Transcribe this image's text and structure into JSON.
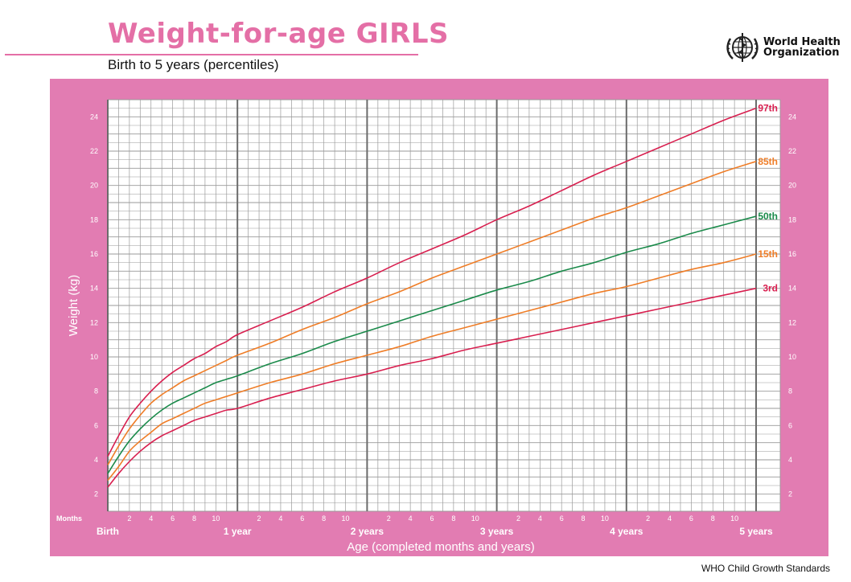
{
  "header": {
    "title": "Weight-for-age GIRLS",
    "subtitle": "Birth to 5 years (percentiles)",
    "org_line1": "World Health",
    "org_line2": "Organization"
  },
  "footer": {
    "text": "WHO Child Growth Standards"
  },
  "colors": {
    "frame": "#e27cb2",
    "grid": "#9a9a9a",
    "grid_major": "#6b6b6b",
    "p3": "#d81f4f",
    "p15": "#ef7d27",
    "p50": "#1a8a4a",
    "p85": "#ef7d27",
    "p97": "#d81f4f"
  },
  "chart_data": {
    "type": "line",
    "title": "Weight-for-age GIRLS",
    "subtitle": "Birth to 5 years (percentiles)",
    "xlabel": "Age (completed months and years)",
    "ylabel": "Weight (kg)",
    "x_unit": "months",
    "xlim": [
      0,
      60
    ],
    "ylim": [
      1,
      25
    ],
    "grid": true,
    "months_label": "Months",
    "x_minor_ticks": [
      2,
      4,
      6,
      8,
      10,
      14,
      16,
      18,
      20,
      22,
      26,
      28,
      30,
      32,
      34,
      38,
      40,
      42,
      44,
      46,
      50,
      52,
      54,
      56,
      58
    ],
    "x_minor_tick_labels": [
      "2",
      "4",
      "6",
      "8",
      "10",
      "2",
      "4",
      "6",
      "8",
      "10",
      "2",
      "4",
      "6",
      "8",
      "10",
      "2",
      "4",
      "6",
      "8",
      "10",
      "2",
      "4",
      "6",
      "8",
      "10"
    ],
    "x_major_ticks": [
      0,
      12,
      24,
      36,
      48,
      60
    ],
    "x_major_tick_labels": [
      "Birth",
      "1 year",
      "2 years",
      "3 years",
      "4 years",
      "5 years"
    ],
    "y_ticks": [
      2,
      4,
      6,
      8,
      10,
      12,
      14,
      16,
      18,
      20,
      22,
      24
    ],
    "y_tick_labels": [
      "2",
      "4",
      "6",
      "8",
      "10",
      "12",
      "14",
      "16",
      "18",
      "20",
      "22",
      "24"
    ],
    "x": [
      0,
      1,
      2,
      3,
      4,
      5,
      6,
      7,
      8,
      9,
      10,
      11,
      12,
      15,
      18,
      21,
      24,
      27,
      30,
      33,
      36,
      39,
      42,
      45,
      48,
      51,
      54,
      57,
      60
    ],
    "series": [
      {
        "name": "3rd",
        "label": "3rd",
        "colorKey": "p3",
        "values": [
          2.4,
          3.2,
          3.9,
          4.5,
          5.0,
          5.4,
          5.7,
          6.0,
          6.3,
          6.5,
          6.7,
          6.9,
          7.0,
          7.6,
          8.1,
          8.6,
          9.0,
          9.5,
          9.9,
          10.4,
          10.8,
          11.2,
          11.6,
          12.0,
          12.4,
          12.8,
          13.2,
          13.6,
          14.0
        ]
      },
      {
        "name": "15th",
        "label": "15th",
        "colorKey": "p15",
        "values": [
          2.8,
          3.6,
          4.5,
          5.1,
          5.6,
          6.1,
          6.4,
          6.7,
          7.0,
          7.3,
          7.5,
          7.7,
          7.9,
          8.5,
          9.0,
          9.6,
          10.1,
          10.6,
          11.2,
          11.7,
          12.2,
          12.7,
          13.2,
          13.7,
          14.1,
          14.6,
          15.1,
          15.5,
          16.0
        ]
      },
      {
        "name": "50th",
        "label": "50th",
        "colorKey": "p50",
        "values": [
          3.2,
          4.2,
          5.1,
          5.8,
          6.4,
          6.9,
          7.3,
          7.6,
          7.9,
          8.2,
          8.5,
          8.7,
          8.9,
          9.6,
          10.2,
          10.9,
          11.5,
          12.1,
          12.7,
          13.3,
          13.9,
          14.4,
          15.0,
          15.5,
          16.1,
          16.6,
          17.2,
          17.7,
          18.2
        ]
      },
      {
        "name": "85th",
        "label": "85th",
        "colorKey": "p85",
        "values": [
          3.7,
          4.8,
          5.8,
          6.6,
          7.3,
          7.8,
          8.2,
          8.6,
          8.9,
          9.2,
          9.5,
          9.8,
          10.1,
          10.8,
          11.6,
          12.3,
          13.1,
          13.8,
          14.6,
          15.3,
          16.0,
          16.7,
          17.4,
          18.1,
          18.7,
          19.4,
          20.1,
          20.8,
          21.4
        ]
      },
      {
        "name": "97th",
        "label": "97th",
        "colorKey": "p97",
        "values": [
          4.2,
          5.4,
          6.5,
          7.3,
          8.0,
          8.6,
          9.1,
          9.5,
          9.9,
          10.2,
          10.6,
          10.9,
          11.3,
          12.1,
          12.9,
          13.8,
          14.6,
          15.5,
          16.3,
          17.1,
          18.0,
          18.8,
          19.7,
          20.6,
          21.4,
          22.2,
          23.0,
          23.8,
          24.5
        ]
      }
    ]
  }
}
